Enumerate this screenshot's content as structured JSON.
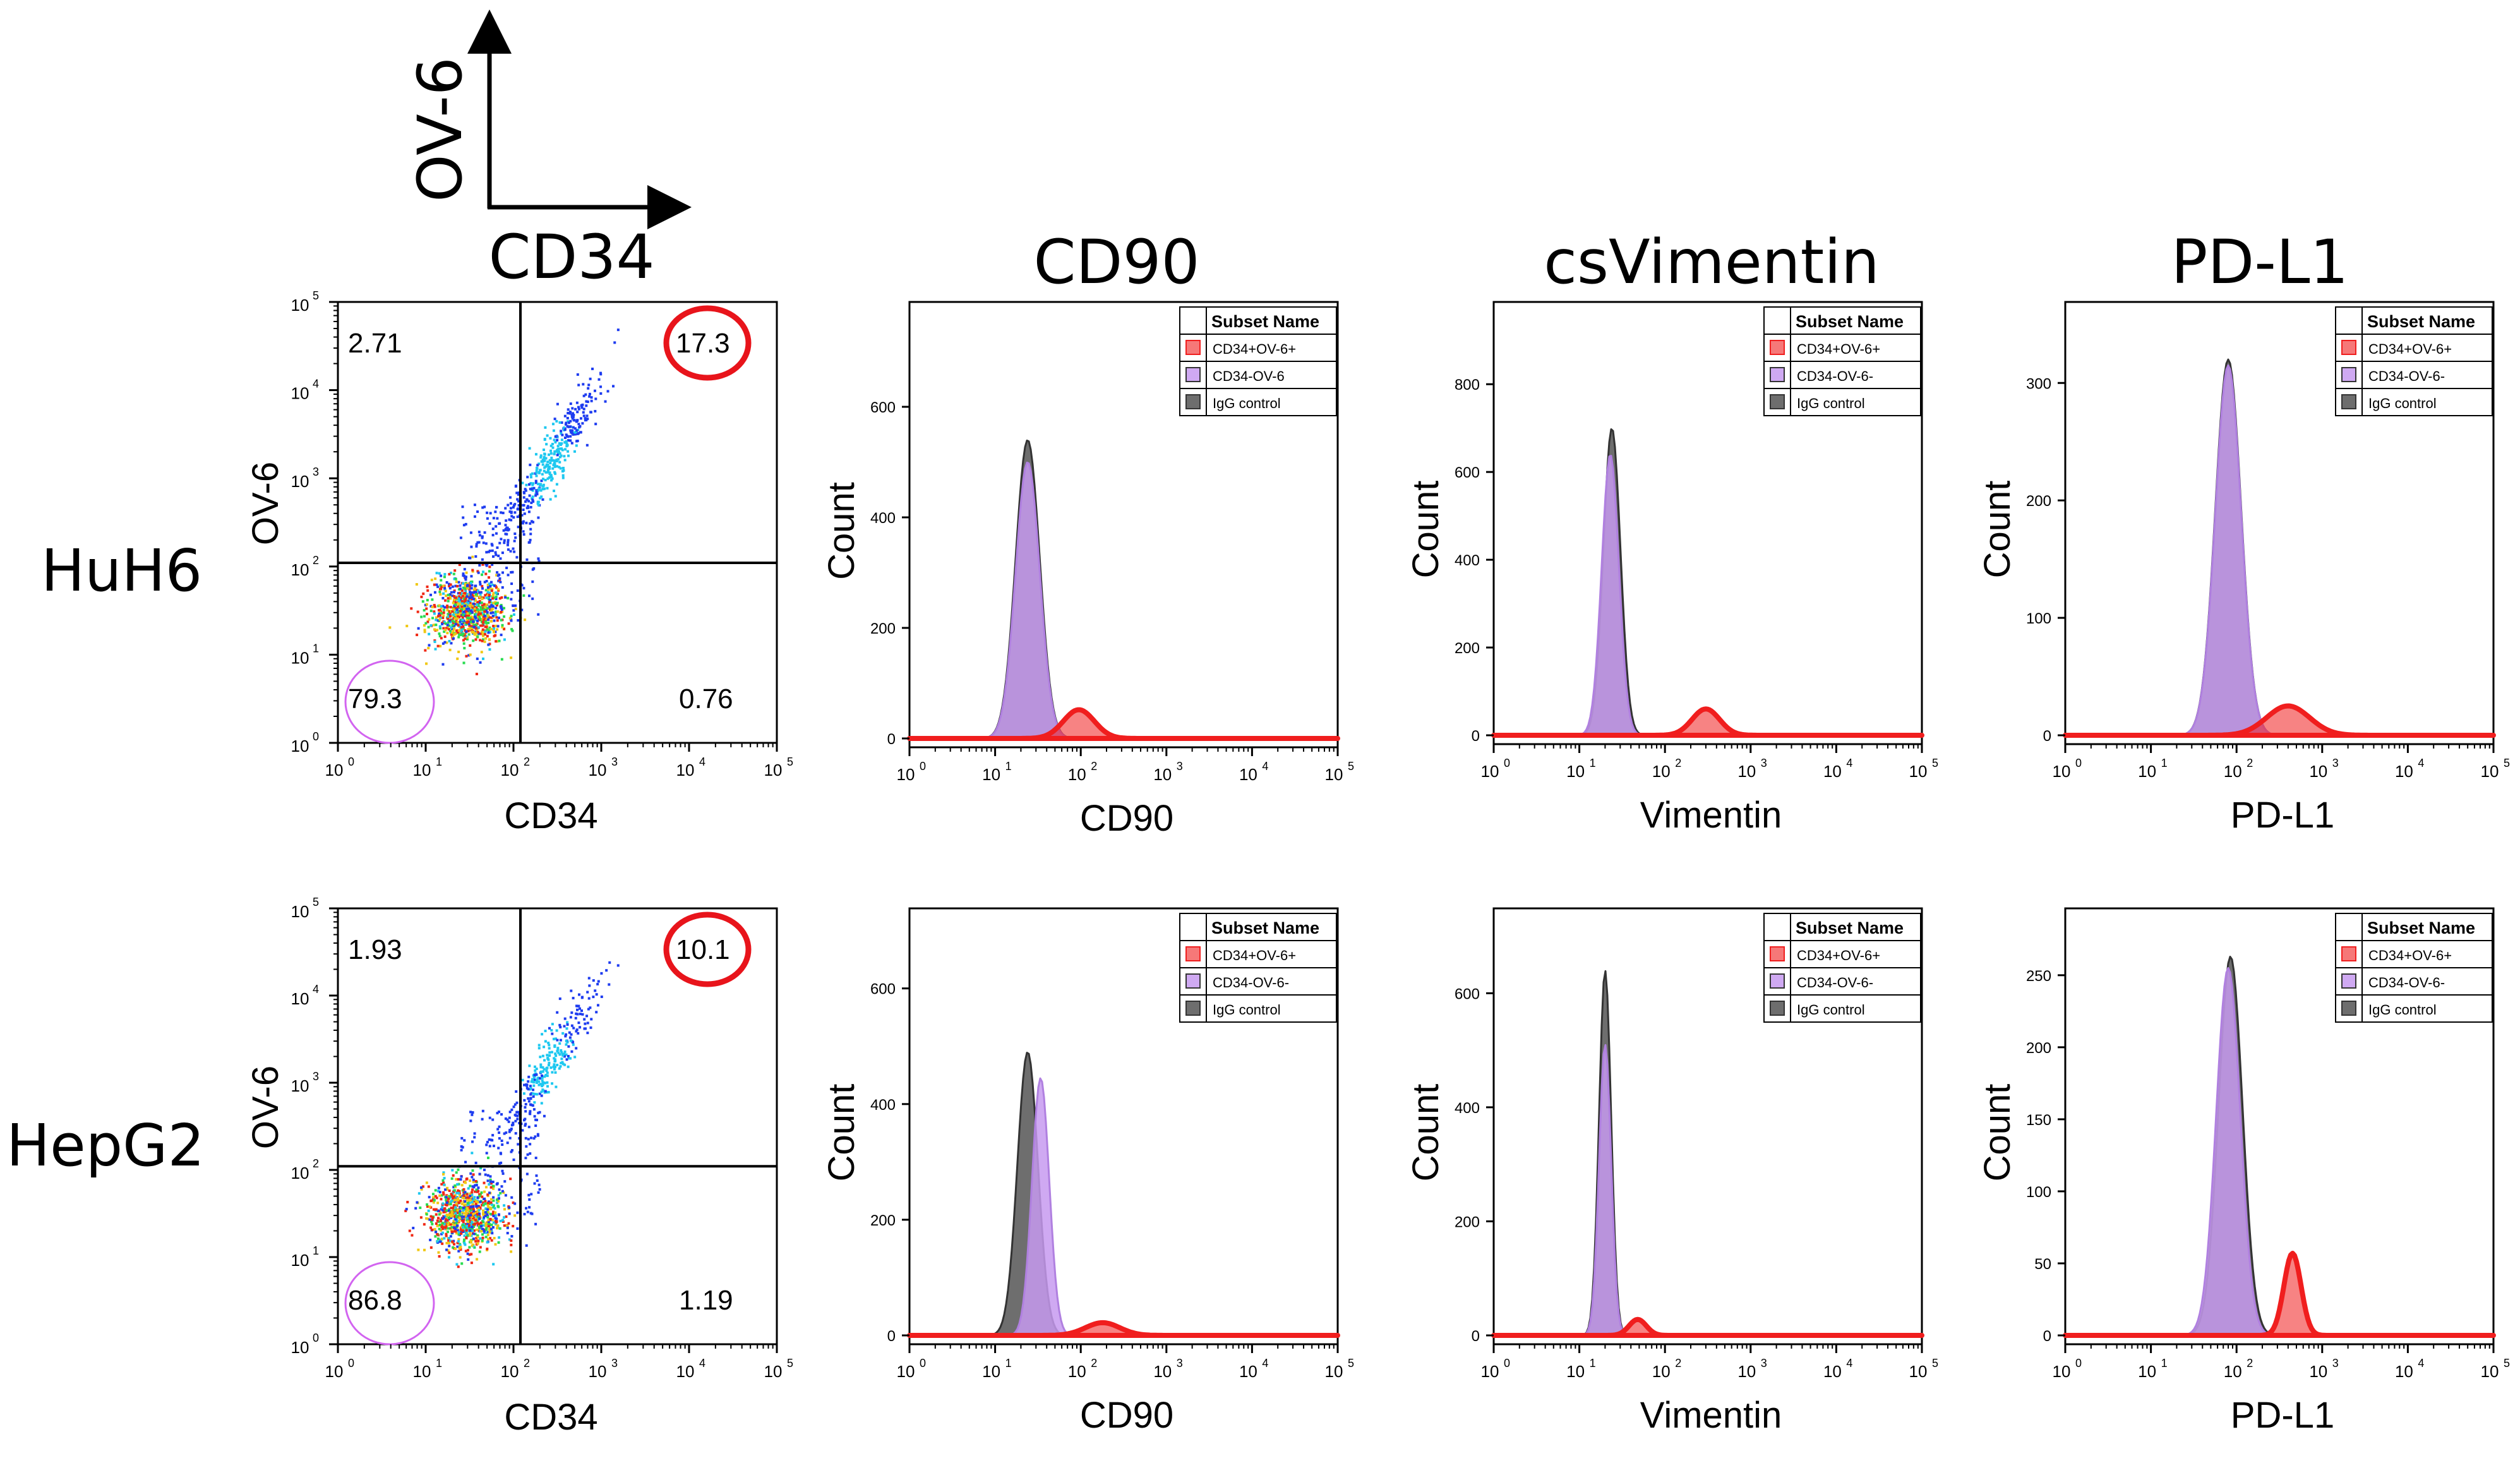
{
  "orientation": {
    "y_label": "OV-6",
    "x_label": "CD34"
  },
  "column_headers": [
    "CD34",
    "CD90",
    "csVimentin",
    "PD-L1"
  ],
  "row_labels": [
    "HuH6",
    "HepG2"
  ],
  "colors": {
    "axis": "#000000",
    "highlight_circle": "#e8141b",
    "negative_circle": "#d264f0",
    "cd34_ov6_pos": "#f01e1e",
    "cd34_ov6_neg": "#c79af0",
    "igg_control": "#555555"
  },
  "legend": {
    "title": "Subset Name",
    "entries_row1": {
      "cd90": [
        "CD34+OV-6+",
        "CD34-OV-6",
        "IgG control"
      ],
      "vimentin": [
        "CD34+OV-6+",
        "CD34-OV-6-",
        "IgG control"
      ],
      "pdl1": [
        "CD34+OV-6+",
        "CD34-OV-6-",
        "IgG control"
      ]
    },
    "entries_row2": [
      "CD34+OV-6+",
      "CD34-OV-6-",
      "IgG control"
    ]
  },
  "log_ticks": {
    "bases": [
      "10",
      "10",
      "10",
      "10",
      "10",
      "10"
    ],
    "exponents": [
      "0",
      "1",
      "2",
      "3",
      "4",
      "5"
    ]
  },
  "chart_data": [
    {
      "type": "scatter",
      "row": "HuH6",
      "xlabel": "CD34",
      "ylabel": "OV-6",
      "scale": "log10",
      "xlim": [
        1,
        100000
      ],
      "ylim": [
        1,
        100000
      ],
      "gate": {
        "x": 120,
        "y": 110
      },
      "quadrants": {
        "upper_left": "2.71",
        "upper_right": "17.3",
        "lower_left": "79.3",
        "lower_right": "0.76"
      },
      "populations": [
        {
          "name": "CD34-OV-6-",
          "center_x": 30,
          "center_y": 30
        },
        {
          "name": "CD34+OV-6+",
          "center_x": 260,
          "center_y": 1500
        }
      ]
    },
    {
      "type": "scatter",
      "row": "HepG2",
      "xlabel": "CD34",
      "ylabel": "OV-6",
      "scale": "log10",
      "xlim": [
        1,
        100000
      ],
      "ylim": [
        1,
        100000
      ],
      "gate": {
        "x": 120,
        "y": 110
      },
      "quadrants": {
        "upper_left": "1.93",
        "upper_right": "10.1",
        "lower_left": "86.8",
        "lower_right": "1.19"
      },
      "populations": [
        {
          "name": "CD34-OV-6-",
          "center_x": 28,
          "center_y": 30
        },
        {
          "name": "CD34+OV-6+",
          "center_x": 250,
          "center_y": 1600
        }
      ]
    },
    {
      "type": "area",
      "row": "HuH6",
      "marker": "CD90",
      "xlabel": "CD90",
      "ylabel": "Count",
      "xlim": [
        1,
        100000
      ],
      "ylim": [
        0,
        760
      ],
      "yticks": [
        0,
        200,
        400,
        600
      ],
      "series": [
        {
          "name": "IgG control",
          "peak_x": 24,
          "peak": 540,
          "width": 0.14
        },
        {
          "name": "CD34-OV-6",
          "peak_x": 24,
          "peak": 500,
          "width": 0.14
        },
        {
          "name": "CD34+OV-6+",
          "peak_x": 95,
          "peak": 52,
          "width": 0.18
        }
      ]
    },
    {
      "type": "area",
      "row": "HuH6",
      "marker": "csVimentin",
      "xlabel": "Vimentin",
      "ylabel": "Count",
      "xlim": [
        1,
        100000
      ],
      "ylim": [
        0,
        950
      ],
      "yticks": [
        0,
        200,
        400,
        600,
        800
      ],
      "series": [
        {
          "name": "IgG control",
          "peak_x": 24,
          "peak": 700,
          "width": 0.1
        },
        {
          "name": "CD34-OV-6-",
          "peak_x": 23,
          "peak": 640,
          "width": 0.1
        },
        {
          "name": "CD34+OV-6+",
          "peak_x": 300,
          "peak": 60,
          "width": 0.16
        }
      ]
    },
    {
      "type": "area",
      "row": "HuH6",
      "marker": "PD-L1",
      "xlabel": "PD-L1",
      "ylabel": "Count",
      "xlim": [
        1,
        100000
      ],
      "ylim": [
        0,
        355
      ],
      "yticks": [
        0,
        100,
        200,
        300
      ],
      "series": [
        {
          "name": "IgG control",
          "peak_x": 80,
          "peak": 320,
          "width": 0.15
        },
        {
          "name": "CD34-OV-6-",
          "peak_x": 80,
          "peak": 315,
          "width": 0.15
        },
        {
          "name": "CD34+OV-6+",
          "peak_x": 400,
          "peak": 25,
          "width": 0.25
        }
      ]
    },
    {
      "type": "area",
      "row": "HepG2",
      "marker": "CD90",
      "xlabel": "CD90",
      "ylabel": "Count",
      "xlim": [
        1,
        100000
      ],
      "ylim": [
        0,
        710
      ],
      "yticks": [
        0,
        200,
        400,
        600
      ],
      "series": [
        {
          "name": "IgG control",
          "peak_x": 24,
          "peak": 490,
          "width": 0.12
        },
        {
          "name": "CD34-OV-6-",
          "peak_x": 34,
          "peak": 445,
          "width": 0.1
        },
        {
          "name": "CD34+OV-6+",
          "peak_x": 180,
          "peak": 22,
          "width": 0.2
        }
      ]
    },
    {
      "type": "area",
      "row": "HepG2",
      "marker": "csVimentin",
      "xlabel": "Vimentin",
      "ylabel": "Count",
      "xlim": [
        1,
        100000
      ],
      "ylim": [
        0,
        720
      ],
      "yticks": [
        0,
        200,
        400,
        600
      ],
      "series": [
        {
          "name": "IgG control",
          "peak_x": 20,
          "peak": 640,
          "width": 0.07
        },
        {
          "name": "CD34-OV-6-",
          "peak_x": 20,
          "peak": 510,
          "width": 0.07
        },
        {
          "name": "CD34+OV-6+",
          "peak_x": 48,
          "peak": 28,
          "width": 0.1
        }
      ]
    },
    {
      "type": "area",
      "row": "HepG2",
      "marker": "PD-L1",
      "xlabel": "PD-L1",
      "ylabel": "Count",
      "xlim": [
        1,
        100000
      ],
      "ylim": [
        0,
        285
      ],
      "yticks": [
        0,
        50,
        100,
        150,
        200,
        250
      ],
      "series": [
        {
          "name": "IgG control",
          "peak_x": 85,
          "peak": 263,
          "width": 0.14
        },
        {
          "name": "CD34-OV-6-",
          "peak_x": 80,
          "peak": 255,
          "width": 0.14
        },
        {
          "name": "CD34+OV-6+",
          "peak_x": 450,
          "peak": 57,
          "width": 0.1
        }
      ]
    }
  ]
}
